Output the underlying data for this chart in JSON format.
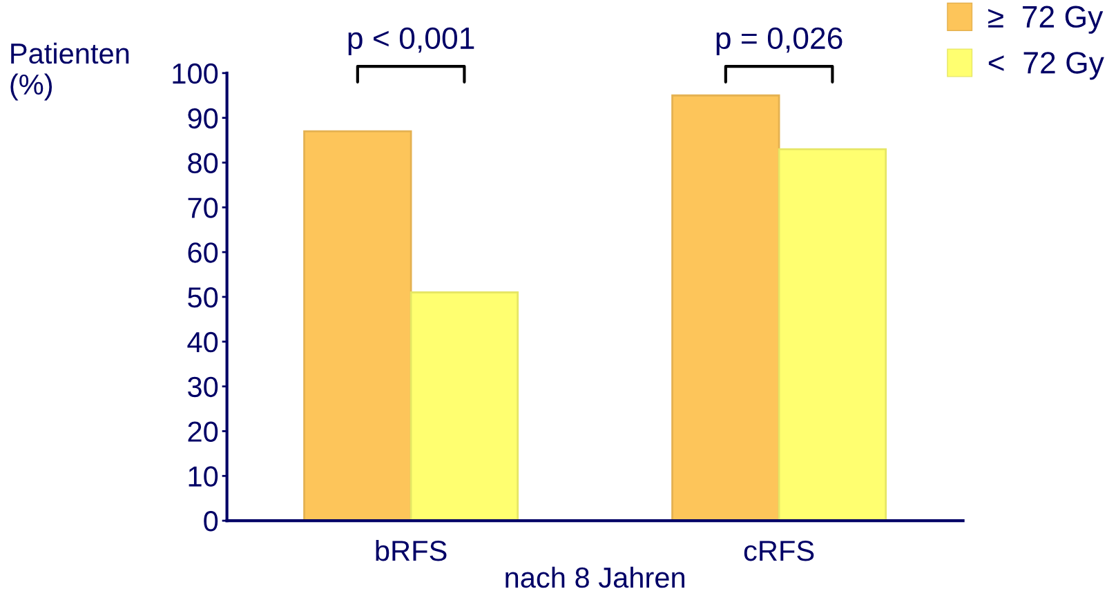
{
  "chart_data": {
    "type": "bar",
    "ylabel": "Patienten\n(%)",
    "xlabel": "nach 8 Jahren",
    "categories": [
      "bRFS",
      "cRFS"
    ],
    "series": [
      {
        "name": "≥  72 Gy",
        "color": "#fdc55a",
        "values": [
          87,
          95
        ]
      },
      {
        "name": "<  72 Gy",
        "color": "#ffff70",
        "values": [
          51,
          83
        ]
      }
    ],
    "ylim": [
      0,
      100
    ],
    "yticks": [
      0,
      10,
      20,
      30,
      40,
      50,
      60,
      70,
      80,
      90,
      100
    ],
    "annotations": [
      "p < 0,001",
      "p = 0,026"
    ],
    "legend": "top right",
    "grid": false
  }
}
